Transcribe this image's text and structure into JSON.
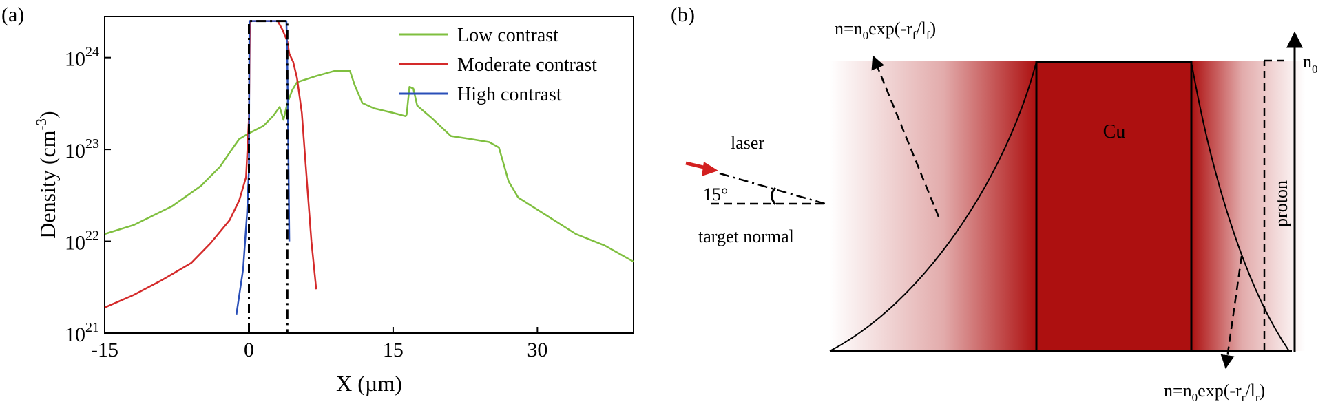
{
  "panels": {
    "a": {
      "label": "(a)"
    },
    "b": {
      "label": "(b)"
    }
  },
  "chart_data": [
    {
      "type": "line",
      "panel": "(a)",
      "ylabel_main": "Density (cm",
      "ylabel_exp": "-3",
      "ylabel_close": ")",
      "xlabel": "X (µm)",
      "xlim": [
        -15,
        40
      ],
      "ylim": [
        1e+21,
        2.8e+24
      ],
      "yscale": "log",
      "xticks": [
        -15,
        0,
        15,
        30
      ],
      "xtick_labels": [
        "-15",
        "0",
        "15",
        "30"
      ],
      "yticks": [
        1e+21,
        1e+22,
        1e+23,
        1e+24
      ],
      "ytick_base": "10",
      "ytick_exps": [
        "21",
        "22",
        "23",
        "24"
      ],
      "legend_position": "top-right",
      "colors": {
        "low": "#7fbf3f",
        "moderate": "#d42a2a",
        "high": "#2a4fb8",
        "target": "#000000"
      },
      "series": [
        {
          "key": "low",
          "name": "Low contrast",
          "points": [
            [
              -15,
              1.2e+22
            ],
            [
              -12,
              1.5e+22
            ],
            [
              -8,
              2.4e+22
            ],
            [
              -5,
              4e+22
            ],
            [
              -3,
              6.5e+22
            ],
            [
              -1.5,
              1.1e+23
            ],
            [
              -1,
              1.3e+23
            ],
            [
              0,
              1.5e+23
            ],
            [
              1.5,
              1.8e+23
            ],
            [
              2.5,
              2.3e+23
            ],
            [
              3.2,
              2.9e+23
            ],
            [
              3.6,
              2.1e+23
            ],
            [
              4,
              3.2e+23
            ],
            [
              4.5,
              4.4e+23
            ],
            [
              5,
              5.4e+23
            ],
            [
              7,
              6.3e+23
            ],
            [
              9,
              7.2e+23
            ],
            [
              10.5,
              7.2e+23
            ],
            [
              11,
              5e+23
            ],
            [
              11.8,
              3.2e+23
            ],
            [
              13,
              2.8e+23
            ],
            [
              15,
              2.5e+23
            ],
            [
              16.3,
              2.3e+23
            ],
            [
              16.4,
              2.4e+23
            ],
            [
              16.7,
              4.8e+23
            ],
            [
              17.1,
              4.6e+23
            ],
            [
              17.5,
              3e+23
            ],
            [
              19,
              2.2e+23
            ],
            [
              21,
              1.4e+23
            ],
            [
              23,
              1.3e+23
            ],
            [
              25,
              1.2e+23
            ],
            [
              26,
              1.05e+23
            ],
            [
              27,
              4.5e+22
            ],
            [
              28,
              3e+22
            ],
            [
              31,
              1.9e+22
            ],
            [
              34,
              1.2e+22
            ],
            [
              37,
              9e+21
            ],
            [
              40,
              6e+21
            ]
          ]
        },
        {
          "key": "moderate",
          "name": "Moderate contrast",
          "points": [
            [
              -15,
              1.9e+21
            ],
            [
              -12,
              2.6e+21
            ],
            [
              -9,
              3.8e+21
            ],
            [
              -6,
              5.8e+21
            ],
            [
              -4,
              9.5e+21
            ],
            [
              -2,
              1.7e+22
            ],
            [
              -1,
              2.8e+22
            ],
            [
              -0.3,
              5e+22
            ],
            [
              0,
              2.2e+23
            ],
            [
              0.1,
              2.5e+24
            ],
            [
              2,
              2.5e+24
            ],
            [
              3,
              2.5e+24
            ],
            [
              3.5,
              2e+24
            ],
            [
              4,
              1.5e+24
            ],
            [
              4.2,
              1.1e+24
            ],
            [
              4.6,
              9e+23
            ],
            [
              5,
              6e+23
            ],
            [
              5.5,
              2.5e+23
            ],
            [
              6,
              5e+22
            ],
            [
              6.5,
              1e+22
            ],
            [
              7,
              3e+21
            ]
          ]
        },
        {
          "key": "high",
          "name": "High contrast",
          "points": [
            [
              -1.3,
              1.6e+21
            ],
            [
              -0.6,
              5e+21
            ],
            [
              -0.2,
              2e+22
            ],
            [
              0,
              6e+22
            ],
            [
              0.05,
              2.5e+24
            ],
            [
              3.9,
              2.5e+24
            ],
            [
              4,
              8e+23
            ],
            [
              4.1,
              1e+23
            ],
            [
              4.2,
              1e+22
            ]
          ]
        },
        {
          "key": "target",
          "name": "",
          "points": [
            [
              0,
              1e+21
            ],
            [
              0,
              2.5e+24
            ],
            [
              4,
              2.5e+24
            ],
            [
              4,
              1e+21
            ]
          ]
        }
      ]
    },
    {
      "type": "diagram",
      "panel": "(b)",
      "labels": {
        "front_prefix": "n=n",
        "front_sub0": "0",
        "front_mid": "exp(-r",
        "front_sub1": "f",
        "front_slash": "/l",
        "front_sub2": "f",
        "front_close": ")",
        "rear_prefix": "n=n",
        "rear_sub0": "0",
        "rear_mid": "exp(-r",
        "rear_sub1": "r",
        "rear_slash": "/l",
        "rear_sub2": "r",
        "rear_close": ")",
        "n0_main": "n",
        "n0_sub": "0",
        "cu": "Cu",
        "laser": "laser",
        "angle": "15°",
        "target_normal": "target normal",
        "proton": "proton"
      },
      "colors": {
        "target": "#ad1010",
        "laser_arrow": "#d32020"
      }
    }
  ]
}
